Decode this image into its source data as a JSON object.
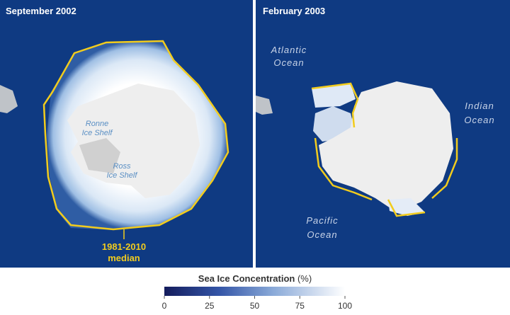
{
  "panels": [
    {
      "title": "September 2002",
      "labels": [
        [
          "Ronne",
          "Ice Shelf"
        ],
        [
          "Ross",
          "Ice Shelf"
        ],
        [
          "1981-2010",
          "median"
        ]
      ]
    },
    {
      "title": "February 2003",
      "labels": [
        [
          "Atlantic",
          "Ocean"
        ],
        [
          "Indian",
          "Ocean"
        ],
        [
          "Pacific",
          "Ocean"
        ]
      ]
    }
  ],
  "colorbar": {
    "title": "Sea Ice Concentration",
    "unit": "(%)",
    "lim": [
      0,
      100
    ],
    "ticks": [
      0,
      25,
      50,
      75,
      100
    ]
  }
}
